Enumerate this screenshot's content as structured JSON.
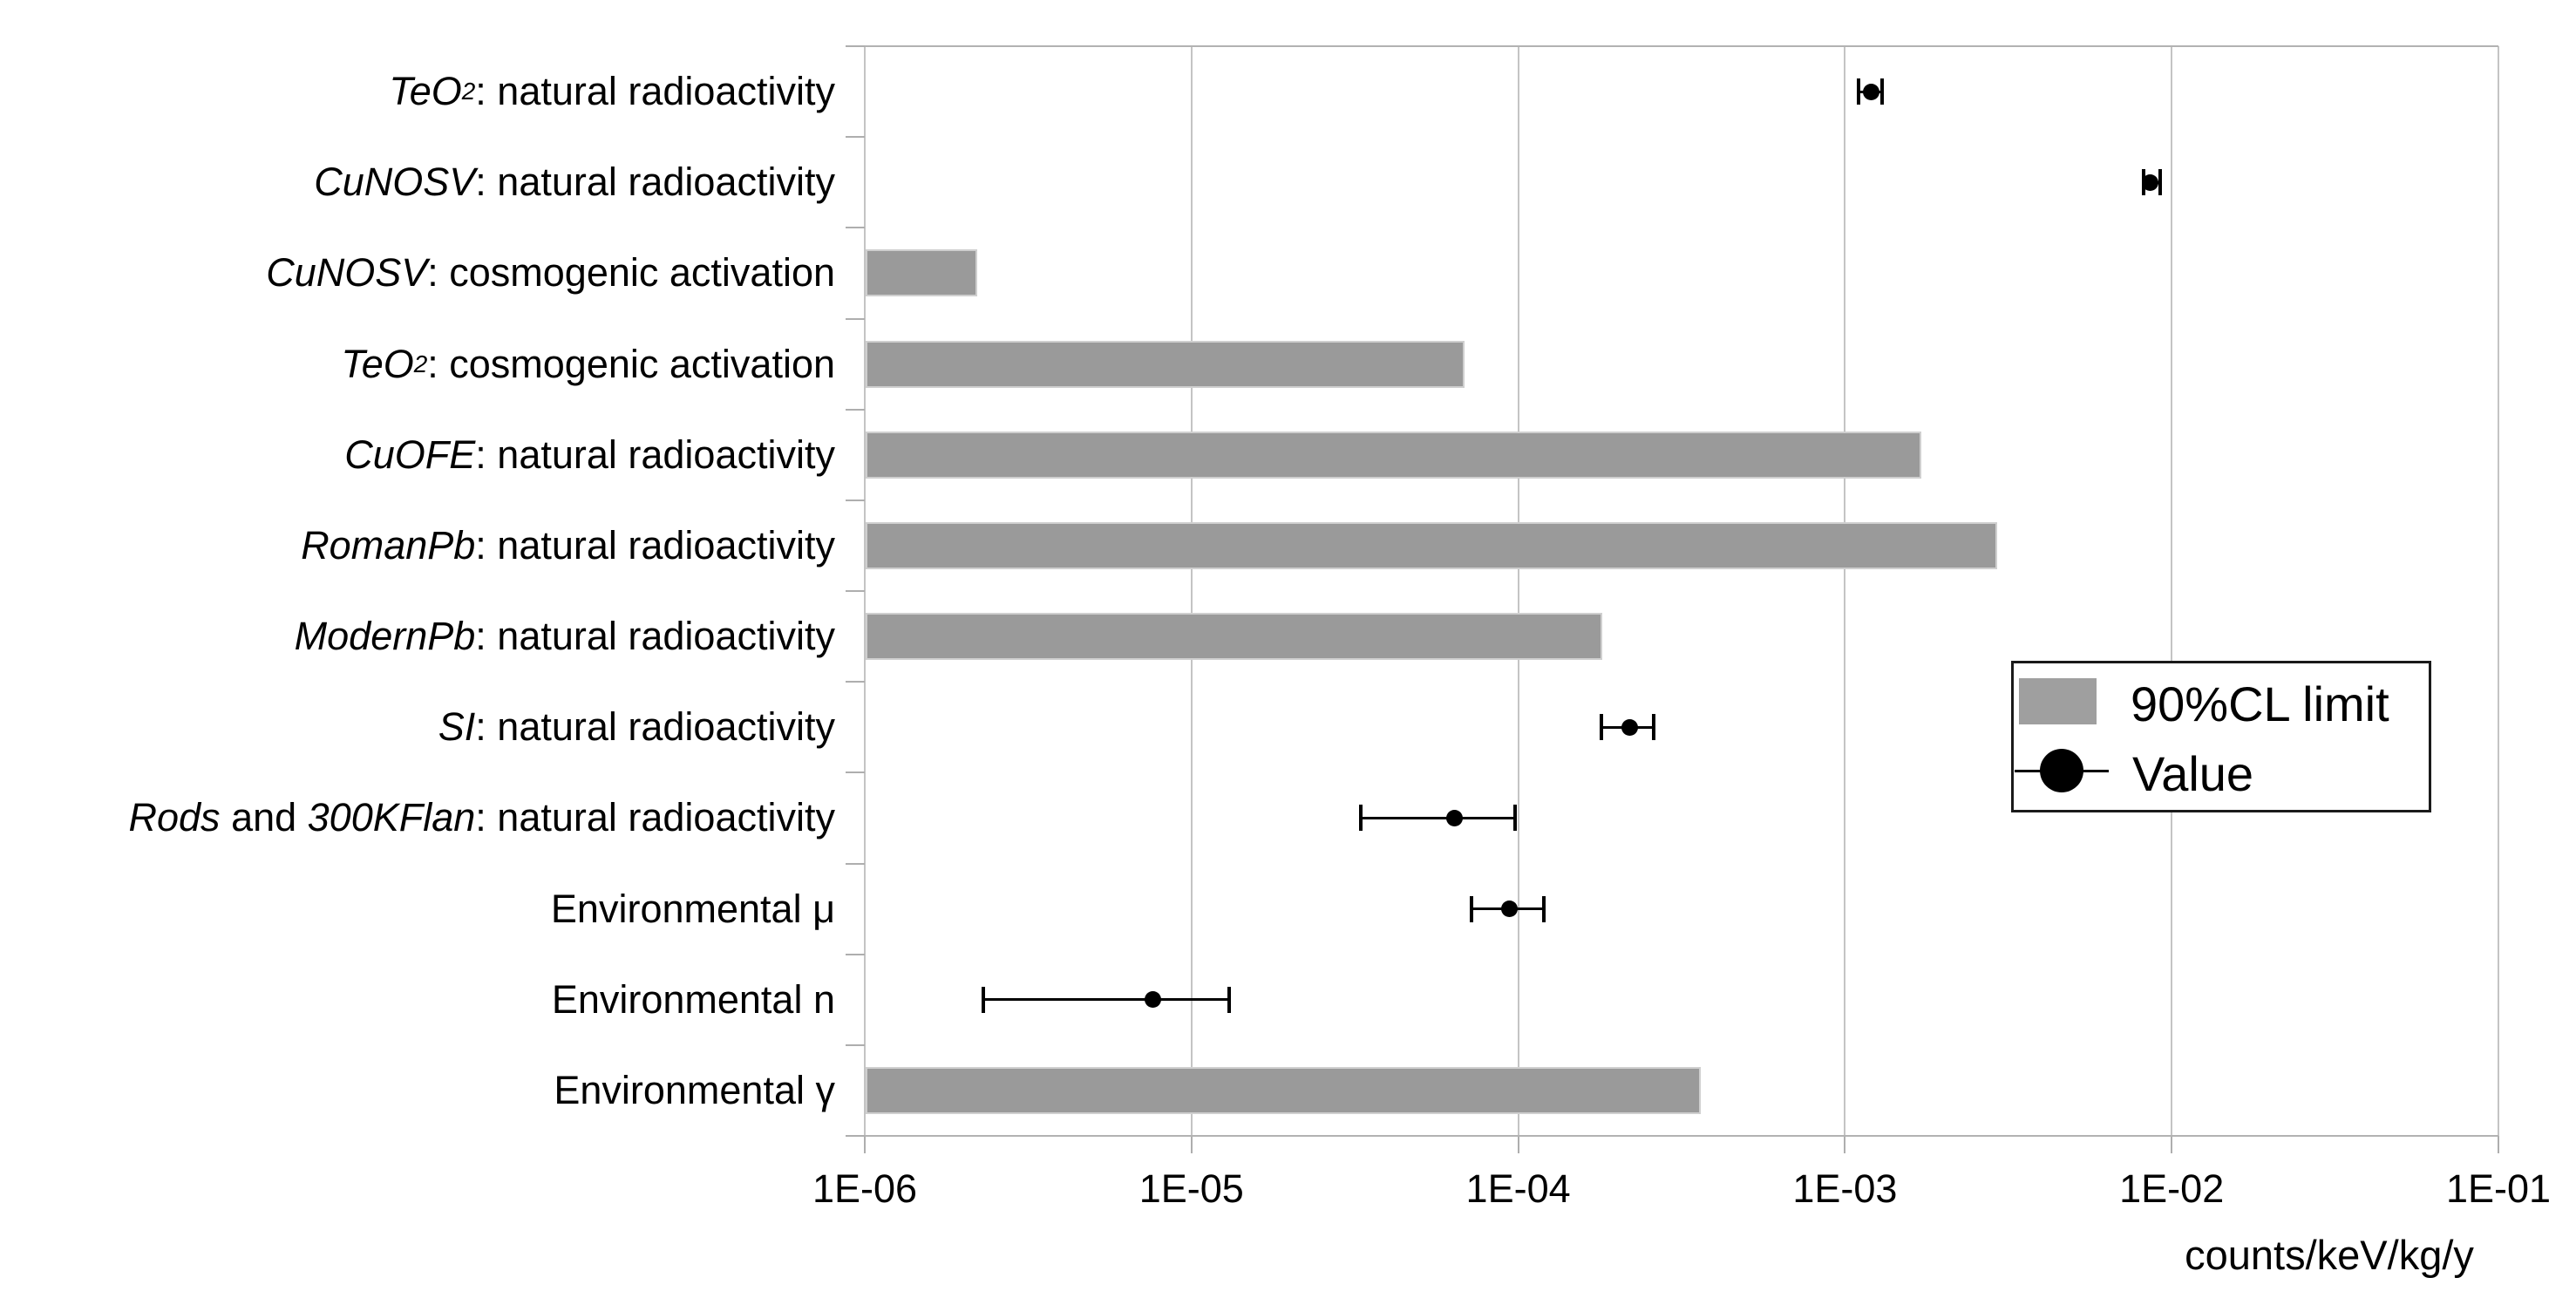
{
  "colors": {
    "limit_bar": "#9a9a9a",
    "bar_outline": "#cfcfcf",
    "gridline": "#c4c4c4",
    "frame": "#b2b2b2",
    "point": "#000000",
    "legend_border": "#1a1a1a",
    "text": "#000000",
    "background": "#ffffff"
  },
  "chart_data": {
    "type": "bar",
    "orientation": "horizontal",
    "title": "",
    "xlabel": "counts/keV/kg/y",
    "ylabel": "",
    "x_axis": {
      "scale": "log",
      "min": 1e-06,
      "max": 0.1,
      "tick_labels": [
        "1E-06",
        "1E-05",
        "1E-04",
        "1E-03",
        "1E-02",
        "1E-01"
      ],
      "grid": true
    },
    "legend": {
      "position": "right-middle",
      "items": [
        {
          "label": "90%CL limit",
          "marker": "gray-bar-swatch"
        },
        {
          "label": "Value",
          "marker": "black-dot-with-line"
        }
      ]
    },
    "rows": [
      {
        "plain_label": "TeO2: natural radioactivity",
        "label_segments": [
          {
            "text": "TeO",
            "italic": true
          },
          {
            "text": "2",
            "italic": true,
            "subscript": true
          },
          {
            "text": ": natural radioactivity"
          }
        ],
        "kind": "value",
        "value": 0.0012,
        "err_lo": 0.0011,
        "err_hi": 0.0013
      },
      {
        "plain_label": "CuNOSV: natural radioactivity",
        "label_segments": [
          {
            "text": "CuNOSV",
            "italic": true
          },
          {
            "text": ": natural radioactivity"
          }
        ],
        "kind": "value",
        "value": 0.0086,
        "err_lo": 0.0082,
        "err_hi": 0.0092
      },
      {
        "plain_label": "CuNOSV: cosmogenic activation",
        "label_segments": [
          {
            "text": "CuNOSV",
            "italic": true
          },
          {
            "text": ": cosmogenic activation"
          }
        ],
        "kind": "limit",
        "limit": 2.2e-06
      },
      {
        "plain_label": "TeO2: cosmogenic activation",
        "label_segments": [
          {
            "text": "TeO",
            "italic": true
          },
          {
            "text": "2",
            "italic": true,
            "subscript": true
          },
          {
            "text": ": cosmogenic activation"
          }
        ],
        "kind": "limit",
        "limit": 6.8e-05
      },
      {
        "plain_label": "CuOFE: natural radioactivity",
        "label_segments": [
          {
            "text": "CuOFE",
            "italic": true
          },
          {
            "text": ": natural radioactivity"
          }
        ],
        "kind": "limit",
        "limit": 0.0017
      },
      {
        "plain_label": "RomanPb: natural radioactivity",
        "label_segments": [
          {
            "text": "RomanPb",
            "italic": true
          },
          {
            "text": ": natural radioactivity"
          }
        ],
        "kind": "limit",
        "limit": 0.0029
      },
      {
        "plain_label": "ModernPb: natural radioactivity",
        "label_segments": [
          {
            "text": "ModernPb",
            "italic": true
          },
          {
            "text": ": natural radioactivity"
          }
        ],
        "kind": "limit",
        "limit": 0.00018
      },
      {
        "plain_label": "SI: natural radioactivity",
        "label_segments": [
          {
            "text": "SI",
            "italic": true
          },
          {
            "text": ": natural radioactivity"
          }
        ],
        "kind": "value",
        "value": 0.00022,
        "err_lo": 0.00018,
        "err_hi": 0.00026
      },
      {
        "plain_label": "Rods and 300KFlan: natural radioactivity",
        "label_segments": [
          {
            "text": "Rods",
            "italic": true
          },
          {
            "text": " and "
          },
          {
            "text": "300KFlan",
            "italic": true
          },
          {
            "text": ": natural radioactivity"
          }
        ],
        "kind": "value",
        "value": 6.4e-05,
        "err_lo": 3.3e-05,
        "err_hi": 9.8e-05
      },
      {
        "plain_label": "Environmental μ",
        "label_segments": [
          {
            "text": "Environmental μ"
          }
        ],
        "kind": "value",
        "value": 9.4e-05,
        "err_lo": 7.2e-05,
        "err_hi": 0.00012
      },
      {
        "plain_label": "Environmental n",
        "label_segments": [
          {
            "text": "Environmental n"
          }
        ],
        "kind": "value",
        "value": 7.6e-06,
        "err_lo": 2.3e-06,
        "err_hi": 1.3e-05
      },
      {
        "plain_label": "Environmental γ",
        "label_segments": [
          {
            "text": "Environmental γ"
          }
        ],
        "kind": "limit",
        "limit": 0.00036
      }
    ]
  }
}
